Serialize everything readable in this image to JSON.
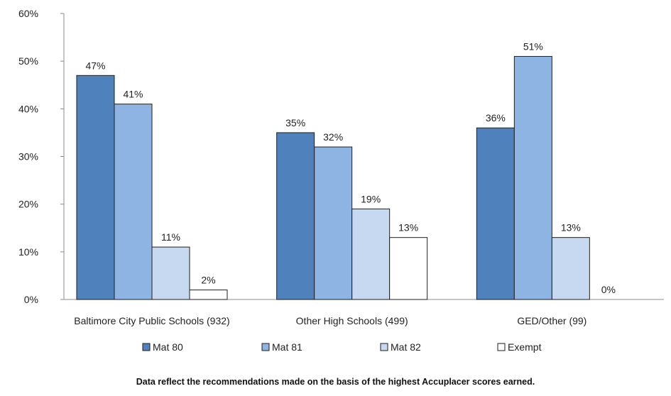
{
  "chart_data": {
    "type": "bar",
    "categories": [
      "Baltimore City Public Schools (932)",
      "Other High Schools (499)",
      "GED/Other (99)"
    ],
    "series": [
      {
        "name": "Mat 80",
        "values": [
          47,
          35,
          36
        ],
        "labels": [
          "47%",
          "35%",
          "36%"
        ],
        "color": "#4f81bd"
      },
      {
        "name": "Mat 81",
        "values": [
          41,
          32,
          51
        ],
        "labels": [
          "41%",
          "32%",
          "51%"
        ],
        "color": "#8eb4e3"
      },
      {
        "name": "Mat 82",
        "values": [
          11,
          19,
          13
        ],
        "labels": [
          "11%",
          "19%",
          "13%"
        ],
        "color": "#c6d9f1"
      },
      {
        "name": "Exempt",
        "values": [
          2,
          13,
          0
        ],
        "labels": [
          "2%",
          "13%",
          "0%"
        ],
        "color": "#ffffff"
      }
    ],
    "ylim": [
      0,
      60
    ],
    "yticks": [
      {
        "value": 0,
        "label": "0%"
      },
      {
        "value": 10,
        "label": "10%"
      },
      {
        "value": 20,
        "label": "20%"
      },
      {
        "value": 30,
        "label": "30%"
      },
      {
        "value": 40,
        "label": "40%"
      },
      {
        "value": 50,
        "label": "50%"
      },
      {
        "value": 60,
        "label": "60%"
      }
    ],
    "grid": false,
    "legend_position": "bottom",
    "title": "",
    "xlabel": "",
    "ylabel": "",
    "note": "Data reflect the recommendations made on the basis of the highest Accuplacer scores earned."
  }
}
